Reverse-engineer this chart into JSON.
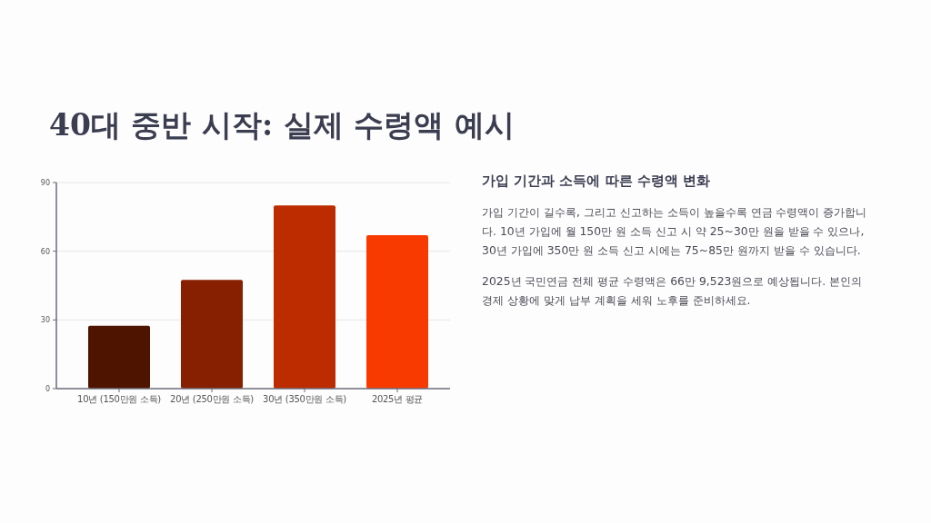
{
  "chart_data": [
    {
      "type": "bar",
      "title": "40대 중반 시작: 실제 수령액 예시",
      "categories": [
        "10년 (150만원 소득)",
        "20년 (250만원 소득)",
        "30년 (350만원 소득)",
        "2025년 평균"
      ],
      "values": [
        27.5,
        47.5,
        80,
        67
      ],
      "colors": [
        "#4f1400",
        "#872000",
        "#bd2c00",
        "#f83a00"
      ],
      "ylim": [
        0,
        90
      ],
      "yticks": [
        0,
        30,
        60,
        90
      ],
      "grid": "y"
    },
    {
      "type": "other",
      "title": "가입 기간과 소득에 따른 수령액 변화",
      "annotations": [
        "가입 기간이 길수록, 그리고 신고하는 소득이 높을수록 연금 수령액이 증가합니다. 10년 가입에 월 150만 원 소득 신고 시 약 25~30만 원을 받을 수 있으나, 30년 가입에 350만 원 소득 신고 시에는 75~85만 원까지 받을 수 있습니다.",
        "2025년 국민연금 전체 평균 수령액은 66만 9,523원으로 예상됩니다. 본인의 경제 상황에 맞게 납부 계획을 세워 노후를 준비하세요."
      ]
    }
  ]
}
